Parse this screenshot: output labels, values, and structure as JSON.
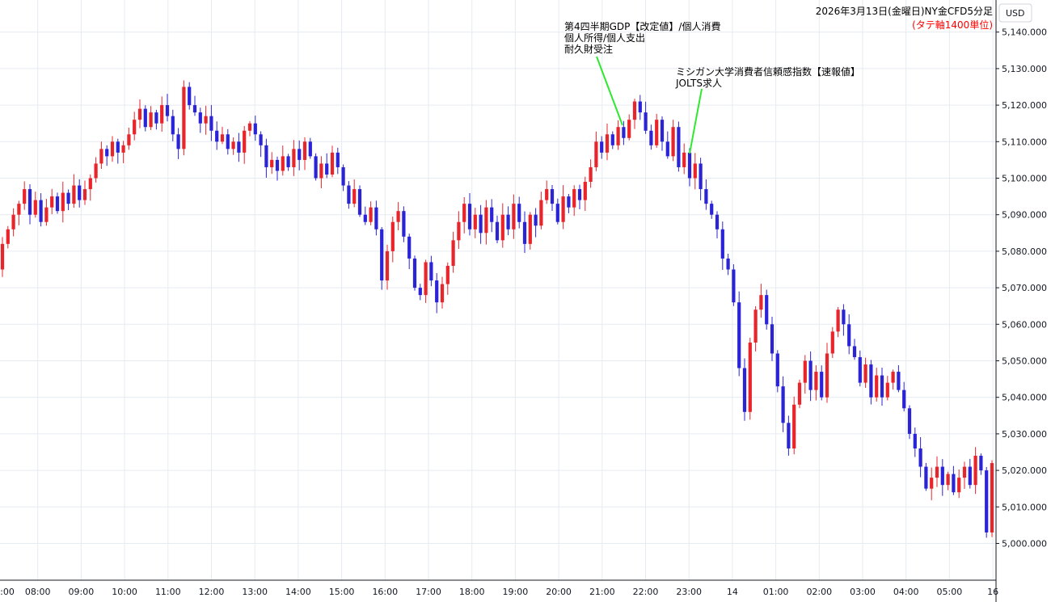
{
  "colors": {
    "up": "#e8252b",
    "down": "#2a24d6",
    "grid": "#e6ebf2",
    "axis": "#131722",
    "leader": "#2ee82e",
    "subtitle": "#ff0000"
  },
  "chart_data": {
    "type": "candlestick",
    "title": "2026年3月13日(金曜日)NY金CFD5分足",
    "subtitle": "(タテ軸1400単位)",
    "currency": "USD",
    "ylim": [
      4995,
      5147
    ],
    "y_ticks": [
      "5,000.000",
      "5,010.000",
      "5,020.000",
      "5,030.000",
      "5,040.000",
      "5,050.000",
      "5,060.000",
      "5,070.000",
      "5,080.000",
      "5,090.000",
      "5,100.000",
      "5,110.000",
      "5,120.000",
      "5,130.000",
      "5,140.000"
    ],
    "x_labels": [
      ":00",
      "08:00",
      "09:00",
      "10:00",
      "11:00",
      "12:00",
      "13:00",
      "14:00",
      "15:00",
      "16:00",
      "17:00",
      "18:00",
      "19:00",
      "20:00",
      "21:00",
      "22:00",
      "23:00",
      "14",
      "01:00",
      "02:00",
      "03:00",
      "04:00",
      "05:00",
      "16"
    ],
    "closes": [
      5082,
      5086,
      5090,
      5093,
      5097,
      5090,
      5094,
      5088,
      5092,
      5095,
      5091,
      5096,
      5093,
      5098,
      5094,
      5097,
      5100,
      5104,
      5108,
      5106,
      5110,
      5107,
      5109,
      5112,
      5116,
      5119,
      5114,
      5118,
      5115,
      5120,
      5117,
      5112,
      5108,
      5125,
      5120,
      5118,
      5115,
      5117,
      5113,
      5110,
      5112,
      5108,
      5110,
      5107,
      5113,
      5115,
      5112,
      5109,
      5103,
      5105,
      5102,
      5106,
      5103,
      5108,
      5105,
      5110,
      5106,
      5100,
      5104,
      5101,
      5107,
      5103,
      5098,
      5093,
      5097,
      5090,
      5088,
      5092,
      5086,
      5072,
      5080,
      5088,
      5091,
      5084,
      5078,
      5070,
      5068,
      5077,
      5072,
      5066,
      5071,
      5076,
      5083,
      5088,
      5093,
      5086,
      5090,
      5085,
      5092,
      5088,
      5083,
      5090,
      5086,
      5093,
      5088,
      5082,
      5090,
      5087,
      5094,
      5097,
      5093,
      5088,
      5095,
      5092,
      5097,
      5094,
      5099,
      5103,
      5110,
      5107,
      5112,
      5109,
      5114,
      5111,
      5116,
      5121,
      5118,
      5113,
      5109,
      5116,
      5110,
      5106,
      5114,
      5103,
      5107,
      5100,
      5104,
      5097,
      5093,
      5090,
      5086,
      5078,
      5075,
      5066,
      5048,
      5036,
      5055,
      5064,
      5068,
      5060,
      5052,
      5043,
      5033,
      5026,
      5038,
      5044,
      5050,
      5042,
      5047,
      5040,
      5052,
      5058,
      5064,
      5060,
      5054,
      5051,
      5044,
      5049,
      5040,
      5046,
      5040,
      5044,
      5047,
      5042,
      5037,
      5030,
      5026,
      5021,
      5015,
      5018,
      5021,
      5016,
      5019,
      5014,
      5018,
      5021,
      5016,
      5024,
      5020,
      5003,
      5022
    ]
  },
  "annotations": {
    "gdp_line1": "第4四半期GDP【改定値】/個人消費",
    "gdp_line2": "個人所得/個人支出",
    "gdp_line3": "耐久財受注",
    "mich_line1": "ミシガン大学消費者信頼感指数【速報値】",
    "mich_line2": "JOLTS求人"
  },
  "current_price": "5,022"
}
